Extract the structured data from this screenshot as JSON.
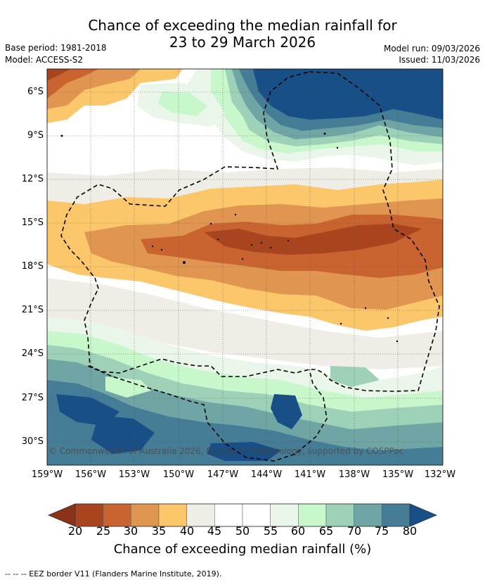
{
  "title": {
    "line1": "Chance of exceeding the median rainfall for",
    "line2": "23 to 29 March 2026"
  },
  "meta": {
    "base_period": "Base period: 1981-2018",
    "model": "Model: ACCESS-S2",
    "model_run": "Model run: 09/03/2026",
    "issued": "Issued: 11/03/2026"
  },
  "map": {
    "copyright": "© Commonwealth of Australia 2026, Bureau of Meteorology, supported by COSPPac",
    "lat_labels": [
      "6°S",
      "9°S",
      "12°S",
      "15°S",
      "18°S",
      "21°S",
      "24°S",
      "27°S",
      "30°S"
    ],
    "lon_labels": [
      "159°W",
      "156°W",
      "153°W",
      "150°W",
      "147°W",
      "144°W",
      "141°W",
      "138°W",
      "135°W",
      "132°W"
    ]
  },
  "colorbar": {
    "ticks": [
      "20",
      "25",
      "30",
      "35",
      "40",
      "45",
      "50",
      "55",
      "60",
      "65",
      "70",
      "75",
      "80"
    ],
    "colors": [
      "#a8451f",
      "#c96330",
      "#e09550",
      "#fbc76a",
      "#f0ece6",
      "#ffffff",
      "#ffffff",
      "#eaf6ea",
      "#c9f7cc",
      "#9dd1b8",
      "#6fa6a5",
      "#467d96"
    ],
    "under_color": "#8a3318",
    "over_color": "#174f86",
    "label": "Chance of exceeding median rainfall (%)"
  },
  "footnote": "--  --  -- EEZ border V11 (Flanders Marine Institute, 2019)."
}
